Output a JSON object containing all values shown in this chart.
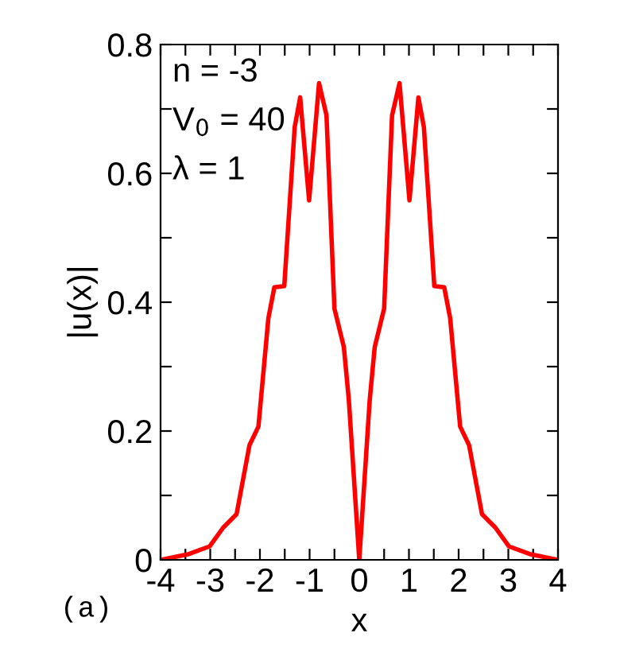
{
  "chart_data": {
    "type": "line",
    "xlabel": "x",
    "ylabel": "|u(x)|",
    "x": [
      -4,
      -3.43,
      -3.01,
      -2.74,
      -2.47,
      -2.21,
      -2.03,
      -1.83,
      -1.71,
      -1.51,
      -1.3,
      -1.19,
      -1.01,
      -0.81,
      -0.66,
      -0.5,
      -0.31,
      -0.21,
      0,
      0.21,
      0.31,
      0.5,
      0.66,
      0.81,
      1.01,
      1.19,
      1.3,
      1.51,
      1.71,
      1.83,
      2.03,
      2.21,
      2.47,
      2.74,
      3.01,
      3.43,
      4
    ],
    "series": [
      {
        "color": "#ff0000",
        "values": [
          0,
          0.009,
          0.021,
          0.05,
          0.071,
          0.178,
          0.207,
          0.375,
          0.423,
          0.425,
          0.672,
          0.718,
          0.558,
          0.74,
          0.69,
          0.39,
          0.33,
          0.248,
          0,
          0.248,
          0.33,
          0.39,
          0.69,
          0.74,
          0.558,
          0.718,
          0.672,
          0.425,
          0.423,
          0.375,
          0.207,
          0.178,
          0.071,
          0.05,
          0.021,
          0.009,
          0
        ]
      }
    ],
    "xlim": [
      -4,
      4
    ],
    "ylim": [
      0,
      0.8
    ],
    "xticks": [
      -4,
      {
        "value": -3.5,
        "label": null
      },
      -3,
      {
        "value": -2.5,
        "label": null
      },
      -2,
      {
        "value": -1.5,
        "label": null
      },
      -1,
      {
        "value": -0.5,
        "label": null
      },
      0,
      {
        "value": 0.5,
        "label": null
      },
      1,
      {
        "value": 1.5,
        "label": null
      },
      2,
      {
        "value": 2.5,
        "label": null
      },
      3,
      {
        "value": 3.5,
        "label": null
      },
      4
    ],
    "yticks": [
      0,
      {
        "value": 0.1,
        "label": null
      },
      0.2,
      {
        "value": 0.3,
        "label": null
      },
      0.4,
      {
        "value": 0.5,
        "label": null
      },
      0.6,
      {
        "value": 0.7,
        "label": null
      },
      0.8
    ],
    "grid": false,
    "legend": false,
    "marker": "none",
    "line_style": "solid",
    "annotations": [
      "n = -3",
      "V$_{0}$ = 40",
      "λ = 1",
      "(a)"
    ]
  }
}
